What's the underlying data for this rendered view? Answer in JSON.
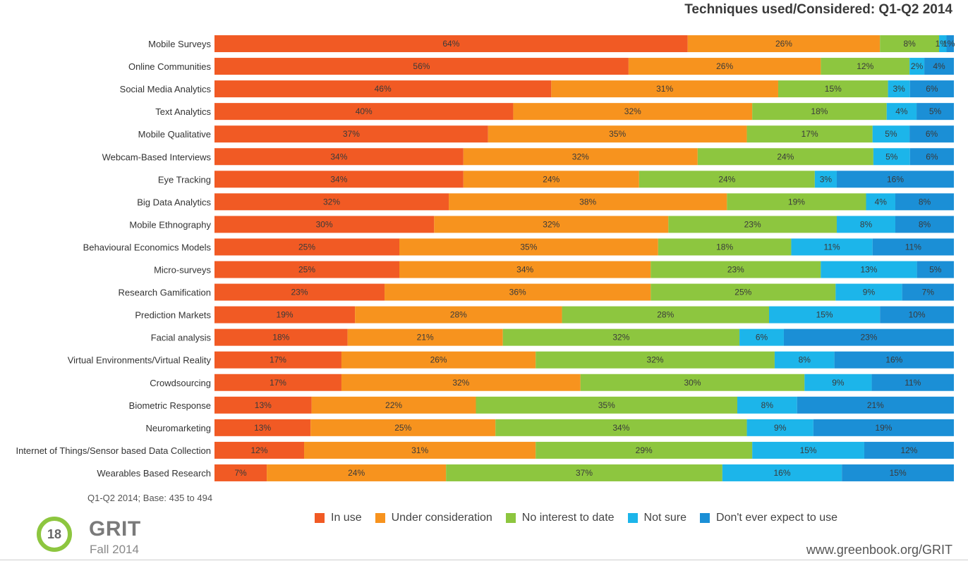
{
  "title": "Techniques used/Considered: Q1-Q2 2014",
  "base_note": "Q1-Q2 2014; Base: 435 to 494",
  "footer": {
    "page_number": "18",
    "brand": "GRIT",
    "edition": "Fall 2014",
    "website": "www.greenbook.org/GRIT"
  },
  "chart_data": {
    "type": "bar",
    "orientation": "horizontal",
    "stacked": true,
    "title": "Techniques used/Considered: Q1-Q2 2014",
    "xlim": [
      0,
      100
    ],
    "legend_position": "bottom",
    "grid": false,
    "categories": [
      "Mobile Surveys",
      "Online Communities",
      "Social Media Analytics",
      "Text Analytics",
      "Mobile Qualitative",
      "Webcam-Based Interviews",
      "Eye Tracking",
      "Big Data Analytics",
      "Mobile Ethnography",
      "Behavioural Economics Models",
      "Micro-surveys",
      "Research Gamification",
      "Prediction Markets",
      "Facial analysis",
      "Virtual Environments/Virtual Reality",
      "Crowdsourcing",
      "Biometric Response",
      "Neuromarketing",
      "Internet of Things/Sensor based Data Collection",
      "Wearables Based Research"
    ],
    "series": [
      {
        "name": "In use",
        "color": "#f15a24",
        "values": [
          64,
          56,
          46,
          40,
          37,
          34,
          34,
          32,
          30,
          25,
          25,
          23,
          19,
          18,
          17,
          17,
          13,
          13,
          12,
          7
        ]
      },
      {
        "name": "Under consideration",
        "color": "#f7931e",
        "values": [
          26,
          26,
          31,
          32,
          35,
          32,
          24,
          38,
          32,
          35,
          34,
          36,
          28,
          21,
          26,
          32,
          22,
          25,
          31,
          24
        ]
      },
      {
        "name": "No interest to date",
        "color": "#8dc63f",
        "values": [
          8,
          12,
          15,
          18,
          17,
          24,
          24,
          19,
          23,
          18,
          23,
          25,
          28,
          32,
          32,
          30,
          35,
          34,
          29,
          37
        ]
      },
      {
        "name": "Not sure",
        "color": "#1cb5ea",
        "values": [
          1,
          2,
          3,
          4,
          5,
          5,
          3,
          4,
          8,
          11,
          13,
          9,
          15,
          6,
          8,
          9,
          8,
          9,
          15,
          16
        ]
      },
      {
        "name": "Don't ever expect to use",
        "color": "#1b8fd6",
        "values": [
          1,
          4,
          6,
          5,
          6,
          6,
          16,
          8,
          8,
          11,
          5,
          7,
          10,
          23,
          16,
          11,
          21,
          19,
          12,
          15
        ]
      }
    ]
  }
}
